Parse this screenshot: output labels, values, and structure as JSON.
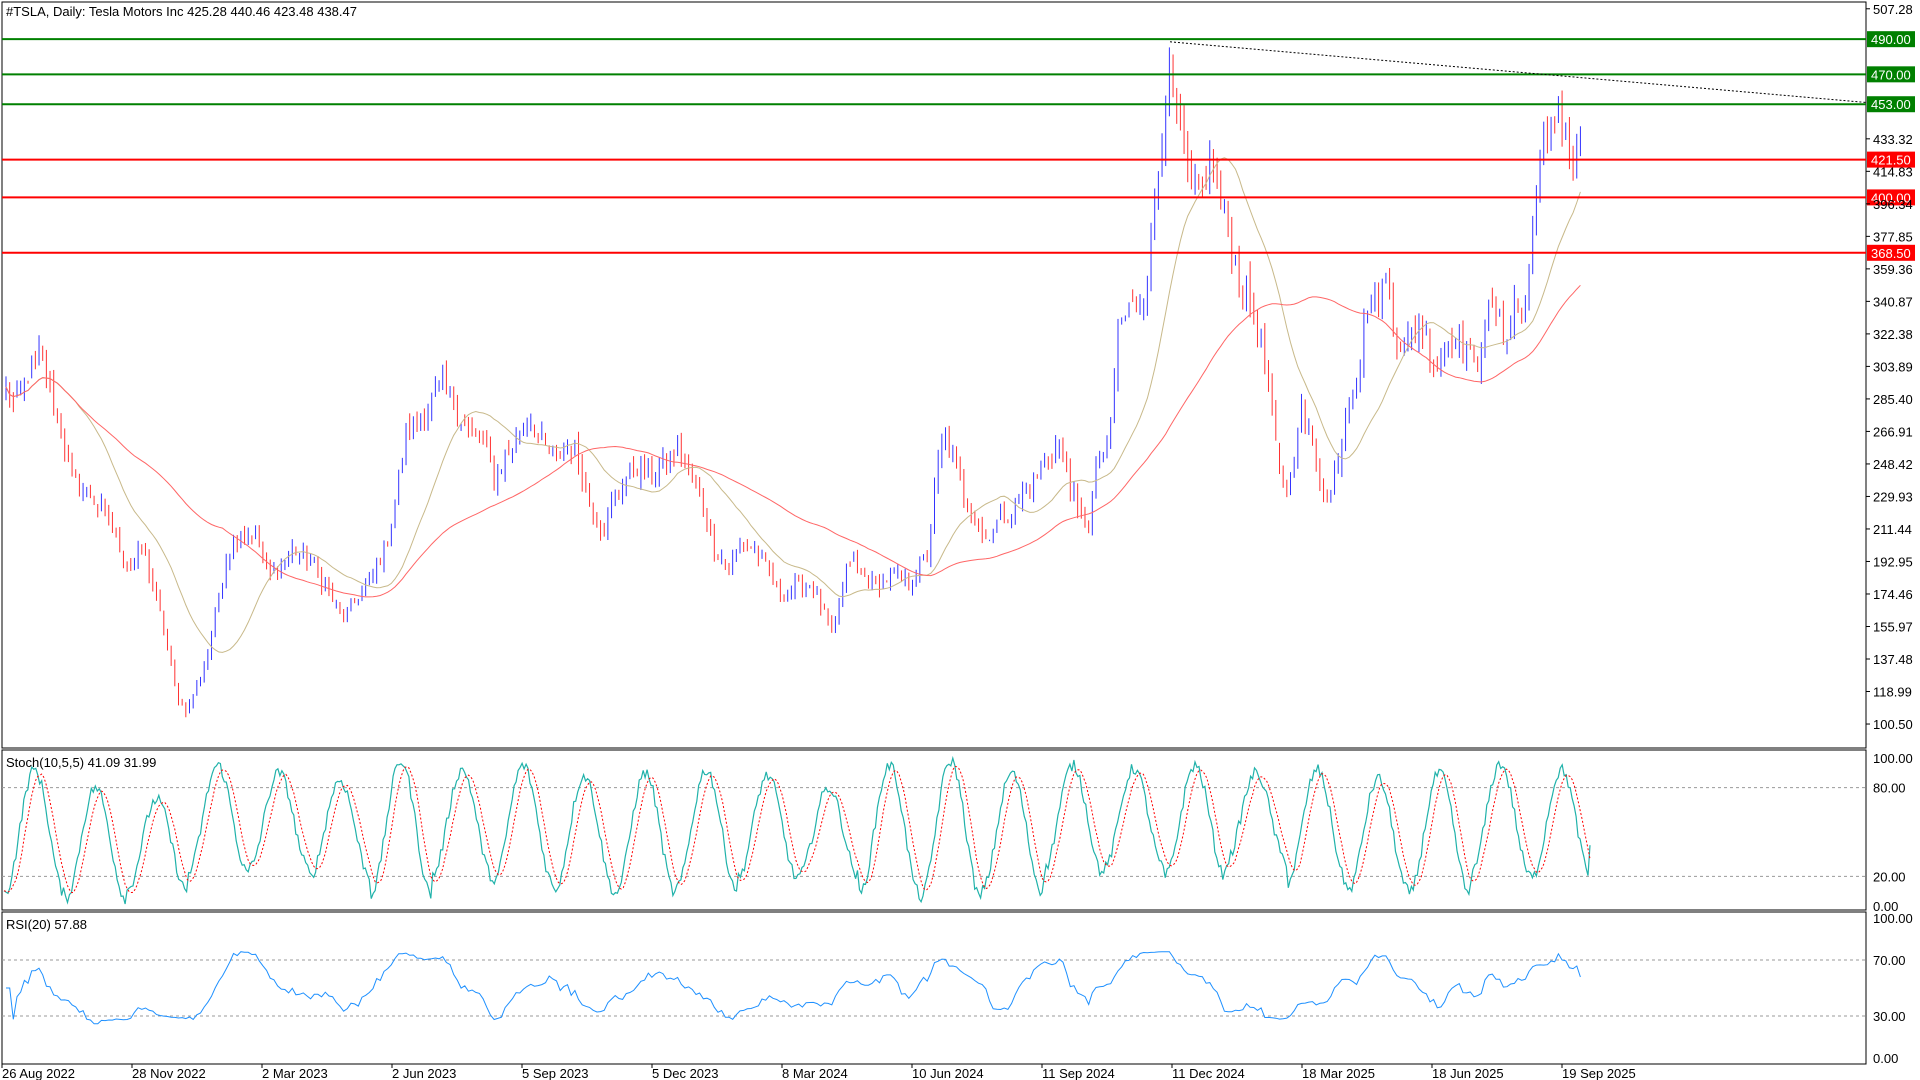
{
  "chart_data": [
    {
      "type": "candlestick",
      "pane": "price",
      "title": "#TSLA, Daily:  Tesla Motors Inc  425.28 440.46 423.48 438.47",
      "symbol": "#TSLA",
      "timeframe": "Daily",
      "instrument": "Tesla Motors Inc",
      "last_ohlc": {
        "open": 425.28,
        "high": 440.46,
        "low": 423.48,
        "close": 438.47
      },
      "ylim": [
        88,
        510
      ],
      "y_ticks": [
        "507.28",
        "433.32",
        "414.83",
        "396.34",
        "377.85",
        "359.36",
        "340.87",
        "322.38",
        "303.89",
        "285.40",
        "266.91",
        "248.42",
        "229.93",
        "211.44",
        "192.95",
        "174.46",
        "155.97",
        "137.48",
        "118.99",
        "100.50"
      ],
      "x_ticks": [
        "26 Aug 2022",
        "28 Nov 2022",
        "2 Mar 2023",
        "2 Jun 2023",
        "5 Sep 2023",
        "5 Dec 2023",
        "8 Mar 2024",
        "10 Jun 2024",
        "11 Sep 2024",
        "11 Dec 2024",
        "18 Mar 2025",
        "18 Jun 2025",
        "19 Sep 2025"
      ],
      "up_color": "#3333ff",
      "down_color": "#ff3333",
      "price_path": [
        [
          0,
          290
        ],
        [
          8,
          280
        ],
        [
          18,
          300
        ],
        [
          28,
          310
        ],
        [
          40,
          280
        ],
        [
          55,
          240
        ],
        [
          70,
          230
        ],
        [
          85,
          215
        ],
        [
          100,
          190
        ],
        [
          112,
          200
        ],
        [
          122,
          175
        ],
        [
          132,
          145
        ],
        [
          140,
          115
        ],
        [
          148,
          108
        ],
        [
          158,
          125
        ],
        [
          165,
          140
        ],
        [
          172,
          165
        ],
        [
          180,
          195
        ],
        [
          192,
          210
        ],
        [
          205,
          208
        ],
        [
          215,
          185
        ],
        [
          225,
          190
        ],
        [
          235,
          200
        ],
        [
          250,
          192
        ],
        [
          262,
          178
        ],
        [
          275,
          160
        ],
        [
          290,
          175
        ],
        [
          300,
          185
        ],
        [
          312,
          205
        ],
        [
          320,
          235
        ],
        [
          328,
          270
        ],
        [
          338,
          272
        ],
        [
          348,
          285
        ],
        [
          358,
          295
        ],
        [
          368,
          280
        ],
        [
          380,
          265
        ],
        [
          392,
          258
        ],
        [
          400,
          240
        ],
        [
          410,
          255
        ],
        [
          418,
          262
        ],
        [
          428,
          275
        ],
        [
          440,
          258
        ],
        [
          450,
          250
        ],
        [
          460,
          262
        ],
        [
          470,
          248
        ],
        [
          478,
          225
        ],
        [
          488,
          210
        ],
        [
          498,
          230
        ],
        [
          508,
          242
        ],
        [
          518,
          248
        ],
        [
          528,
          240
        ],
        [
          540,
          250
        ],
        [
          550,
          258
        ],
        [
          560,
          240
        ],
        [
          570,
          225
        ],
        [
          580,
          200
        ],
        [
          592,
          190
        ],
        [
          602,
          205
        ],
        [
          612,
          200
        ],
        [
          622,
          190
        ],
        [
          632,
          175
        ],
        [
          645,
          178
        ],
        [
          658,
          180
        ],
        [
          668,
          165
        ],
        [
          676,
          150
        ],
        [
          682,
          170
        ],
        [
          690,
          195
        ],
        [
          700,
          185
        ],
        [
          712,
          180
        ],
        [
          725,
          185
        ],
        [
          738,
          180
        ],
        [
          748,
          190
        ],
        [
          755,
          200
        ],
        [
          762,
          250
        ],
        [
          768,
          265
        ],
        [
          776,
          248
        ],
        [
          784,
          230
        ],
        [
          792,
          222
        ],
        [
          800,
          205
        ],
        [
          810,
          215
        ],
        [
          820,
          220
        ],
        [
          830,
          230
        ],
        [
          842,
          240
        ],
        [
          852,
          252
        ],
        [
          860,
          260
        ],
        [
          868,
          245
        ],
        [
          876,
          220
        ],
        [
          886,
          215
        ],
        [
          894,
          255
        ],
        [
          902,
          255
        ],
        [
          910,
          325
        ],
        [
          918,
          335
        ],
        [
          926,
          340
        ],
        [
          934,
          355
        ],
        [
          940,
          400
        ],
        [
          946,
          440
        ],
        [
          950,
          470
        ],
        [
          956,
          455
        ],
        [
          962,
          430
        ],
        [
          970,
          400
        ],
        [
          978,
          405
        ],
        [
          986,
          420
        ],
        [
          994,
          395
        ],
        [
          1002,
          375
        ],
        [
          1010,
          350
        ],
        [
          1018,
          340
        ],
        [
          1026,
          320
        ],
        [
          1034,
          285
        ],
        [
          1042,
          240
        ],
        [
          1050,
          235
        ],
        [
          1058,
          280
        ],
        [
          1066,
          265
        ],
        [
          1074,
          245
        ],
        [
          1082,
          225
        ],
        [
          1090,
          255
        ],
        [
          1098,
          285
        ],
        [
          1106,
          300
        ],
        [
          1114,
          340
        ],
        [
          1122,
          345
        ],
        [
          1130,
          355
        ],
        [
          1138,
          320
        ],
        [
          1146,
          315
        ],
        [
          1154,
          330
        ],
        [
          1162,
          320
        ],
        [
          1170,
          305
        ],
        [
          1178,
          315
        ],
        [
          1186,
          325
        ],
        [
          1194,
          315
        ],
        [
          1202,
          300
        ],
        [
          1210,
          330
        ],
        [
          1218,
          335
        ],
        [
          1226,
          320
        ],
        [
          1234,
          340
        ],
        [
          1242,
          335
        ],
        [
          1248,
          370
        ],
        [
          1252,
          415
        ],
        [
          1258,
          425
        ],
        [
          1264,
          435
        ],
        [
          1270,
          455
        ],
        [
          1276,
          440
        ],
        [
          1282,
          420
        ],
        [
          1288,
          438.47
        ]
      ],
      "levels": [
        {
          "value": 490.0,
          "label": "490.00",
          "color": "#008000"
        },
        {
          "value": 470.0,
          "label": "470.00",
          "color": "#008000"
        },
        {
          "value": 453.0,
          "label": "453.00",
          "color": "#008000"
        },
        {
          "value": 421.5,
          "label": "421.50",
          "color": "#ff0000"
        },
        {
          "value": 400.0,
          "label": "400.00",
          "color": "#ff0000"
        },
        {
          "value": 368.5,
          "label": "368.50",
          "color": "#ff0000"
        }
      ],
      "trendline": {
        "from_value": 488.5,
        "to_value": 454.0,
        "style": "dotted",
        "color": "#000000"
      },
      "moving_averages": [
        {
          "color": "#c8b98a",
          "period_fast": true
        },
        {
          "color": "#ff6666",
          "period_fast": false
        }
      ]
    },
    {
      "type": "line",
      "pane": "stochastic",
      "title": "Stoch(10,5,5) 41.09 31.99",
      "main_value": 41.09,
      "signal_value": 31.99,
      "ylim": [
        0,
        100
      ],
      "y_ticks": [
        "100.00",
        "80.00",
        "20.00",
        "0.00"
      ],
      "levels": [
        80,
        20
      ],
      "main_color": "#20b2aa",
      "signal_color": "#ff0000",
      "cycle_lows": [
        8,
        5,
        10,
        22,
        25,
        20,
        8,
        20,
        15,
        10,
        8,
        12,
        18,
        20,
        8,
        5,
        10,
        22,
        25,
        20,
        30,
        15,
        10,
        8,
        20,
        18
      ],
      "cycle_highs": [
        92,
        80,
        72,
        95,
        90,
        85,
        98,
        92,
        95,
        88,
        90,
        92,
        88,
        80,
        95,
        98,
        90,
        95,
        93,
        95,
        90,
        92,
        86,
        90,
        96,
        92
      ]
    },
    {
      "type": "line",
      "pane": "rsi",
      "title": "RSI(20) 57.88",
      "value": 57.88,
      "ylim": [
        0,
        100
      ],
      "y_ticks": [
        "100.00",
        "70.00",
        "30.00",
        "0.00"
      ],
      "levels": [
        70,
        30
      ],
      "color": "#1e90ff"
    }
  ]
}
